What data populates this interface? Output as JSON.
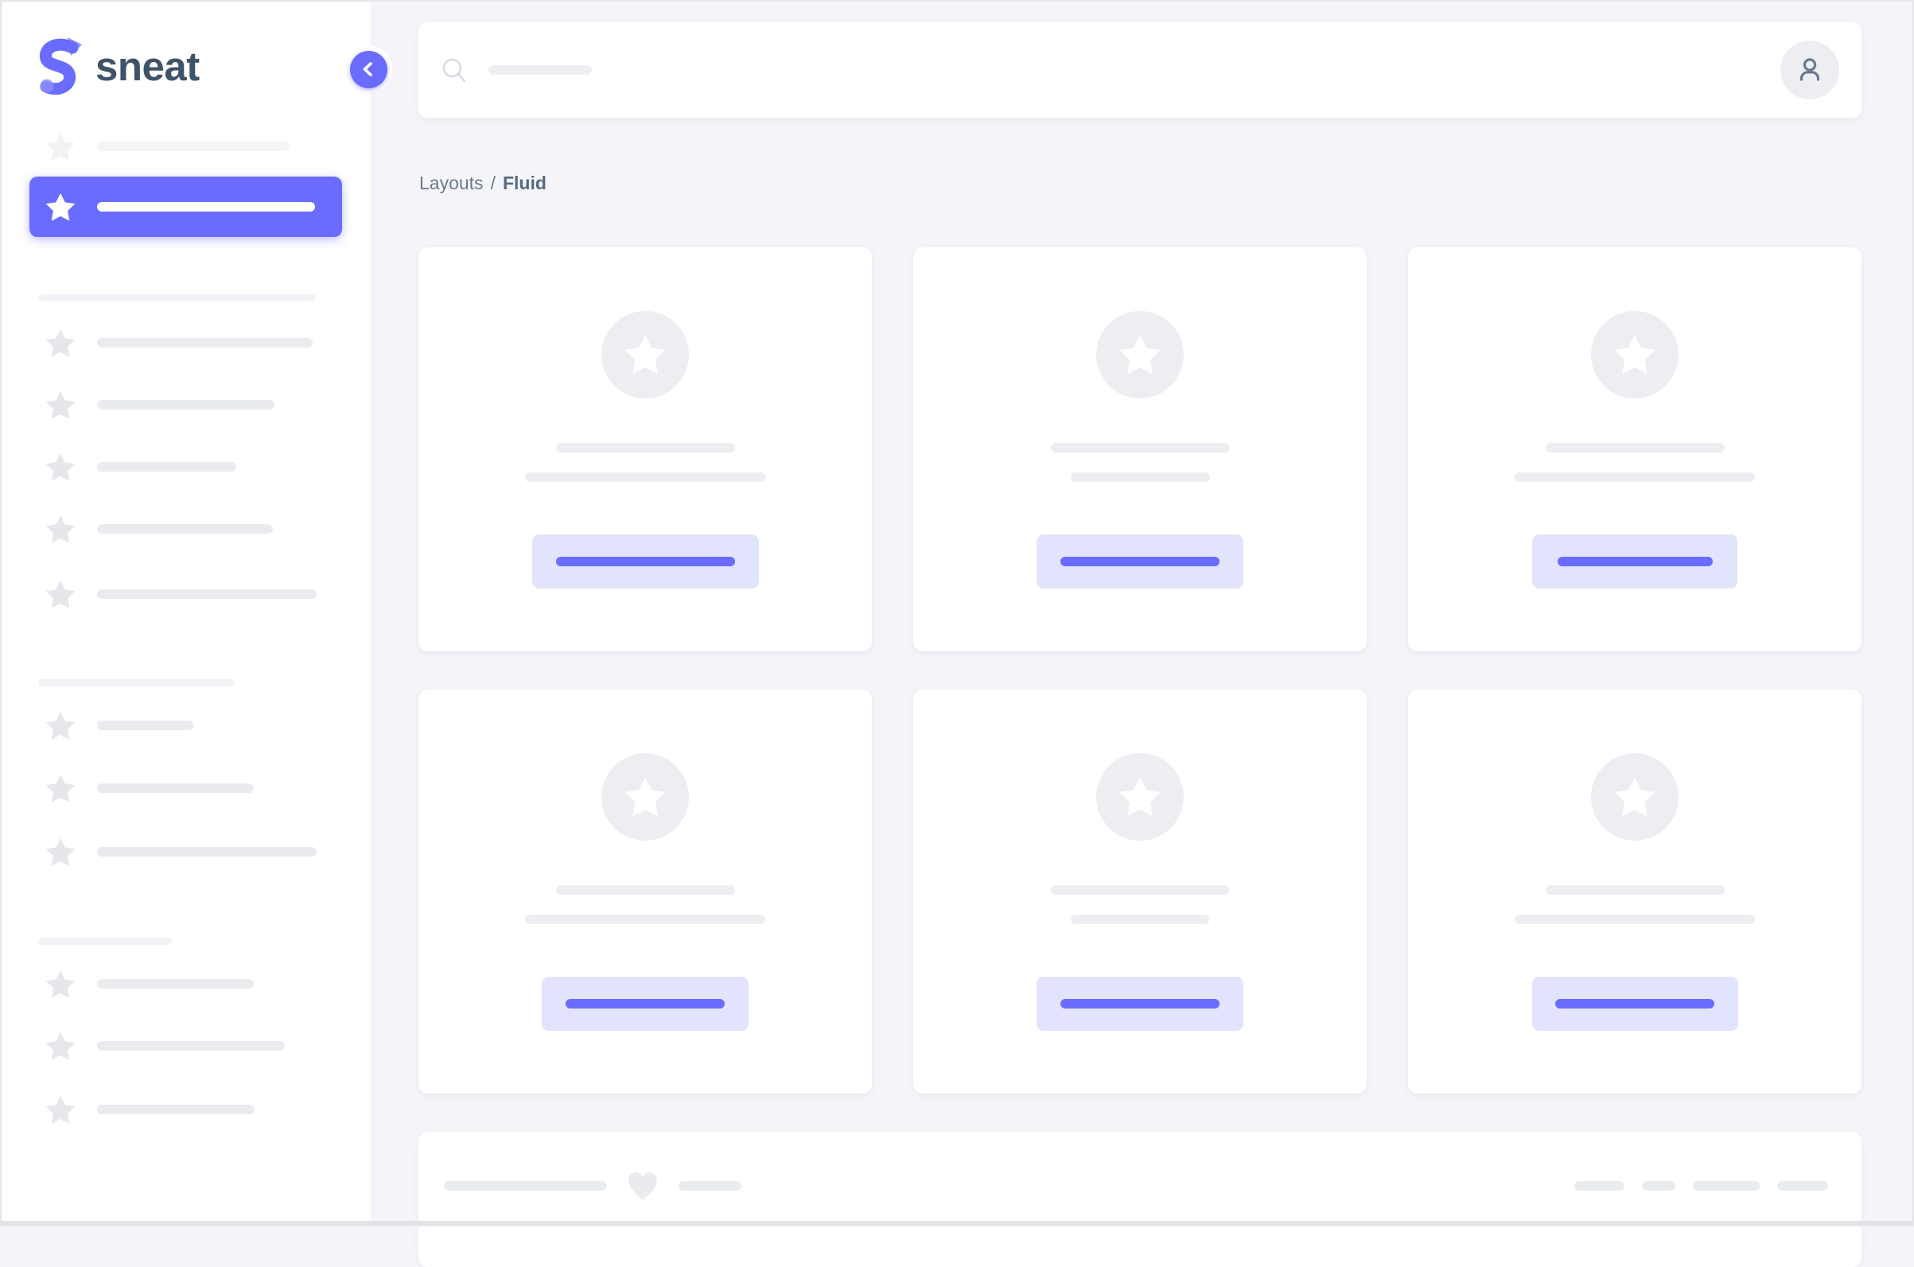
{
  "window": {
    "bg": "#f5f5f9",
    "frame_border": "#e5e6ec",
    "bottom_edge": "#e1e3e7"
  },
  "brand": {
    "logo_text": "sneat",
    "accent": "#696cff",
    "logo_text_color": "#3e5368",
    "logo_icon": "sneat-logo-icon"
  },
  "sidebar": {
    "collapse_button": {
      "icon": "chevron-left-icon",
      "bg": "#696cff"
    },
    "star_icon": "star-icon",
    "skeleton_color": "#e9ebef",
    "star_color": "#e5e7eb",
    "divider_color": "#f2f3f6",
    "top_item": {
      "line_w": 242,
      "faded": true
    },
    "active_item": {
      "line_w": 274,
      "bg": "#696cff"
    },
    "groups": [
      {
        "divider_w": 349,
        "items": [
          {
            "line_w": 271
          },
          {
            "line_w": 223
          },
          {
            "line_w": 175
          },
          {
            "line_w": 221
          },
          {
            "line_w": 276
          }
        ]
      },
      {
        "divider_w": 247,
        "items": [
          {
            "line_w": 121
          },
          {
            "line_w": 197
          },
          {
            "line_w": 276
          }
        ]
      },
      {
        "divider_w": 169,
        "items": [
          {
            "line_w": 197
          },
          {
            "line_w": 236
          },
          {
            "line_w": 198
          }
        ]
      }
    ]
  },
  "topbar": {
    "search_icon": "search-icon",
    "search_skeleton_w": 130,
    "avatar_icon": "person-icon",
    "avatar_bg": "#eceef1"
  },
  "breadcrumb": {
    "section": "Layouts",
    "separator": "/",
    "current": "Fluid"
  },
  "cards": [
    {
      "line1_w": 225,
      "line2_w": 302,
      "btn_w": 285,
      "btn_line_w": 225
    },
    {
      "line1_w": 225,
      "line2_w": 175,
      "btn_w": 260,
      "btn_line_w": 200
    },
    {
      "line1_w": 225,
      "line2_w": 302,
      "btn_w": 258,
      "btn_line_w": 195
    },
    {
      "line1_w": 225,
      "line2_w": 302,
      "btn_w": 260,
      "btn_line_w": 200
    },
    {
      "line1_w": 224,
      "line2_w": 174,
      "btn_w": 260,
      "btn_line_w": 200
    },
    {
      "line1_w": 225,
      "line2_w": 302,
      "btn_w": 259,
      "btn_line_w": 200
    }
  ],
  "footer": {
    "left_lines": [
      205,
      79
    ],
    "heart_icon": "heart-icon",
    "right_pills": [
      63,
      42,
      84,
      64
    ],
    "skeleton_color": "#eaedf0"
  },
  "colors": {
    "accent": "#696cff",
    "button_bg": "#e2e3fc",
    "card_skeleton": "#eceef1",
    "text_dark": "#566a7f",
    "text_gray": "#697a8d"
  }
}
